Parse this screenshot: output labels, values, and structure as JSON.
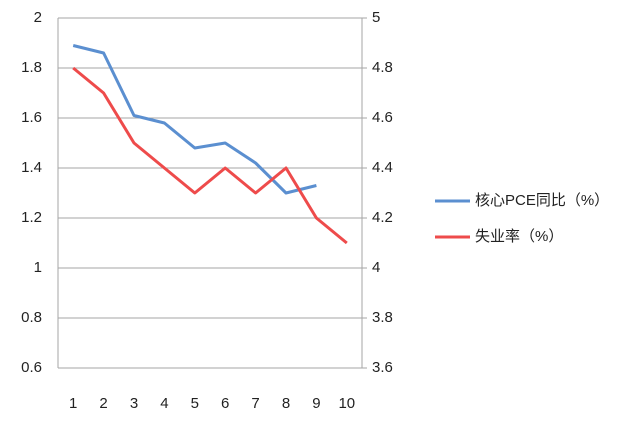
{
  "chart_data": {
    "type": "line",
    "categories": [
      "1",
      "2",
      "3",
      "4",
      "5",
      "6",
      "7",
      "8",
      "9",
      "10"
    ],
    "series": [
      {
        "name": "核心PCE同比（%）",
        "color": "#5b8fd0",
        "values": [
          1.89,
          1.86,
          1.61,
          1.58,
          1.48,
          1.5,
          1.42,
          1.3,
          1.33,
          null
        ]
      },
      {
        "name": "失业率（%）",
        "color": "#ee4b4b",
        "axis": "y2",
        "values": [
          4.8,
          4.7,
          4.5,
          4.4,
          4.3,
          4.4,
          4.3,
          4.4,
          4.2,
          4.1
        ]
      }
    ],
    "ylim": [
      0.6,
      2
    ],
    "yticks": [
      0.6,
      0.8,
      1,
      1.2,
      1.4,
      1.6,
      1.8,
      2
    ],
    "y2lim": [
      3.6,
      5
    ],
    "y2ticks": [
      3.6,
      3.8,
      4,
      4.2,
      4.4,
      4.6,
      4.8,
      5
    ],
    "grid": true,
    "legend": "right"
  }
}
